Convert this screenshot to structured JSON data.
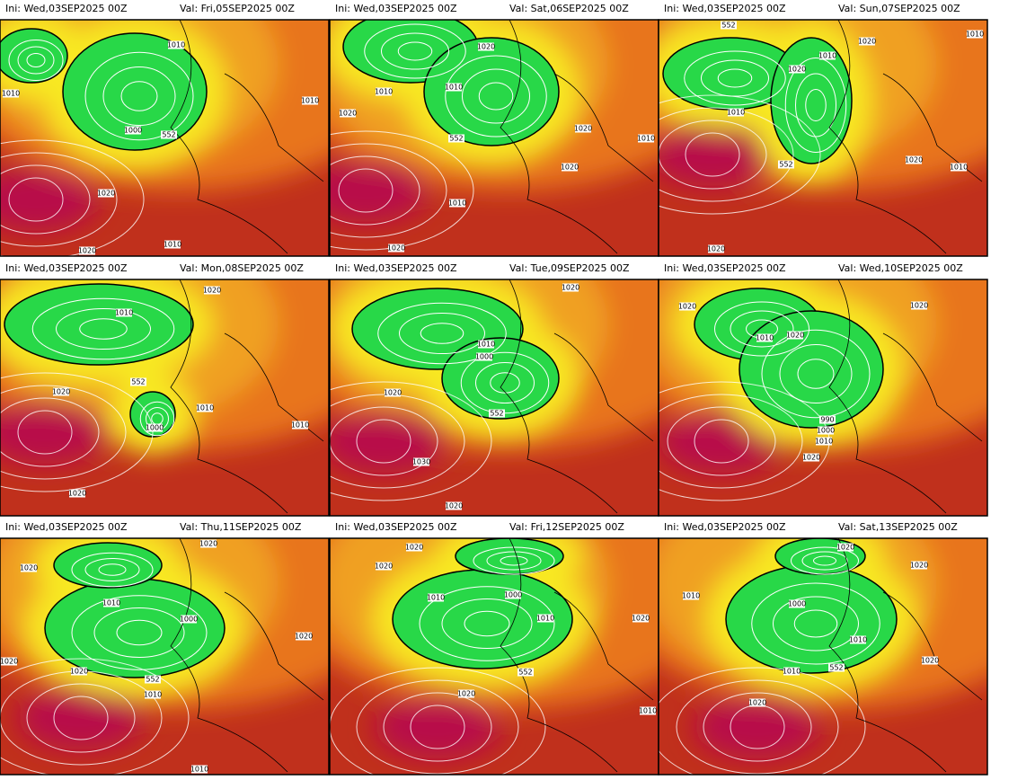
{
  "panels": [
    {
      "ini": "Ini: Wed,03SEP2025 00Z",
      "val": "Val: Fri,05SEP2025 00Z",
      "labels": [
        "1010",
        "1010",
        "1000",
        "552",
        "1010",
        "1020",
        "1010",
        "1020"
      ]
    },
    {
      "ini": "Ini: Wed,03SEP2025 00Z",
      "val": "Val: Sat,06SEP2025 00Z",
      "labels": [
        "1020",
        "1010",
        "1010",
        "1020",
        "552",
        "1020",
        "1020",
        "1010",
        "1010",
        "1020"
      ]
    },
    {
      "ini": "Ini: Wed,03SEP2025 00Z",
      "val": "Val: Sun,07SEP2025 00Z",
      "labels": [
        "552",
        "1020",
        "1010",
        "1010",
        "1020",
        "1010",
        "552",
        "1020",
        "1010",
        "1020"
      ]
    },
    {
      "ini": "Ini: Wed,03SEP2025 00Z",
      "val": "Val: Mon,08SEP2025 00Z",
      "labels": [
        "1020",
        "1010",
        "552",
        "1020",
        "1010",
        "1000",
        "1010",
        "1020"
      ]
    },
    {
      "ini": "Ini: Wed,03SEP2025 00Z",
      "val": "Val: Tue,09SEP2025 00Z",
      "labels": [
        "1020",
        "1010",
        "1000",
        "1020",
        "552",
        "1030",
        "1020"
      ]
    },
    {
      "ini": "Ini: Wed,03SEP2025 00Z",
      "val": "Val: Wed,10SEP2025 00Z",
      "labels": [
        "1020",
        "1010",
        "1020",
        "1020",
        "990",
        "1000",
        "1010",
        "1020"
      ]
    },
    {
      "ini": "Ini: Wed,03SEP2025 00Z",
      "val": "Val: Thu,11SEP2025 00Z",
      "labels": [
        "1020",
        "1020",
        "1010",
        "1000",
        "1020",
        "1020",
        "552",
        "1010",
        "1020",
        "1010"
      ]
    },
    {
      "ini": "Ini: Wed,03SEP2025 00Z",
      "val": "Val: Fri,12SEP2025 00Z",
      "labels": [
        "1020",
        "1020",
        "1010",
        "1000",
        "1010",
        "1020",
        "552",
        "1020",
        "1010"
      ]
    },
    {
      "ini": "Ini: Wed,03SEP2025 00Z",
      "val": "Val: Sat,13SEP2025 00Z",
      "labels": [
        "1020",
        "1020",
        "1010",
        "1000",
        "1010",
        "552",
        "1010",
        "1020",
        "1020"
      ]
    }
  ]
}
